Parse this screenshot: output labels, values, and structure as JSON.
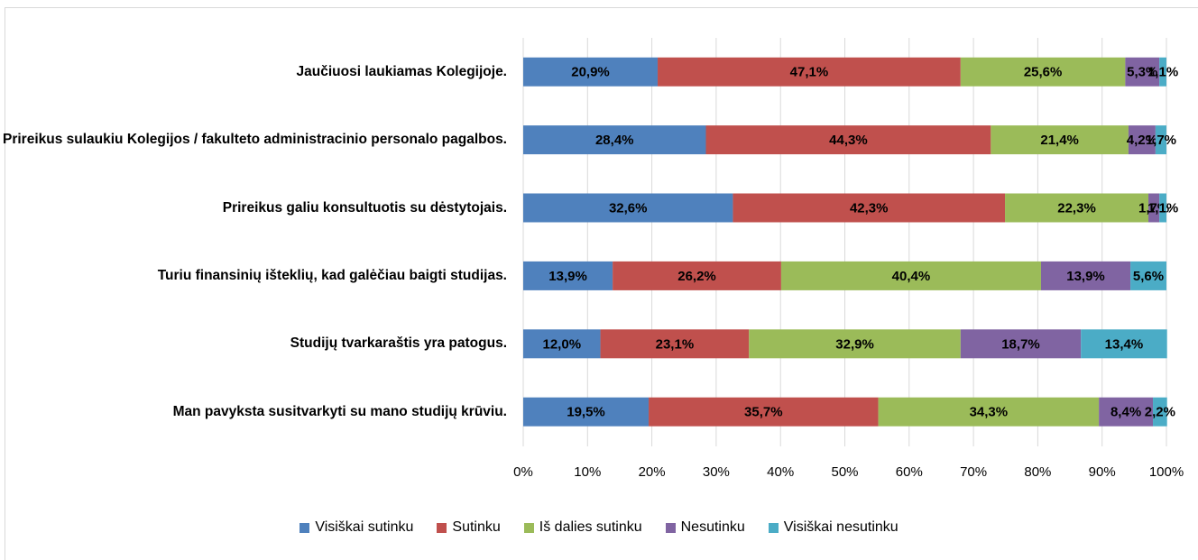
{
  "chart_data": {
    "type": "stacked_barh",
    "categories": [
      "Jaučiuosi laukiamas Kolegijoje.",
      "Prireikus sulaukiu Kolegijos / fakulteto administracinio personalo pagalbos.",
      "Prireikus galiu konsultuotis su dėstytojais.",
      "Turiu finansinių išteklių, kad galėčiau baigti studijas.",
      "Studijų tvarkaraštis yra patogus.",
      "Man pavyksta susitvarkyti su mano studijų krūviu."
    ],
    "series": [
      {
        "name": "Visiškai sutinku",
        "color": "#4f81bd",
        "values": [
          20.9,
          28.4,
          32.6,
          13.9,
          12.0,
          19.5
        ],
        "value_labels": [
          "20,9%",
          "28,4%",
          "32,6%",
          "13,9%",
          "12,0%",
          "19,5%"
        ]
      },
      {
        "name": "Sutinku",
        "color": "#c0504d",
        "values": [
          47.1,
          44.3,
          42.3,
          26.2,
          23.1,
          35.7
        ],
        "value_labels": [
          "47,1%",
          "44,3%",
          "42,3%",
          "26,2%",
          "23,1%",
          "35,7%"
        ]
      },
      {
        "name": "Iš dalies sutinku",
        "color": "#9bbb59",
        "values": [
          25.6,
          21.4,
          22.3,
          40.4,
          32.9,
          34.3
        ],
        "value_labels": [
          "25,6%",
          "21,4%",
          "22,3%",
          "40,4%",
          "32,9%",
          "34,3%"
        ]
      },
      {
        "name": "Nesutinku",
        "color": "#8064a2",
        "values": [
          5.3,
          4.2,
          1.7,
          13.9,
          18.7,
          8.4
        ],
        "value_labels": [
          "5,3%",
          "4,2%",
          "1,7%",
          "13,9%",
          "18,7%",
          "8,4%"
        ]
      },
      {
        "name": "Visiškai nesutinku",
        "color": "#4bacc6",
        "values": [
          1.1,
          1.7,
          1.1,
          5.6,
          13.4,
          2.2
        ],
        "value_labels": [
          "1,1%",
          "1,7%",
          "1,1%",
          "5,6%",
          "13,4%",
          "2,2%"
        ]
      }
    ],
    "xlim": [
      0,
      100
    ],
    "xticks": [
      {
        "value": 0,
        "label": "0%"
      },
      {
        "value": 10,
        "label": "10%"
      },
      {
        "value": 20,
        "label": "20%"
      },
      {
        "value": 30,
        "label": "30%"
      },
      {
        "value": 40,
        "label": "40%"
      },
      {
        "value": 50,
        "label": "50%"
      },
      {
        "value": 60,
        "label": "60%"
      },
      {
        "value": 70,
        "label": "70%"
      },
      {
        "value": 80,
        "label": "80%"
      },
      {
        "value": 90,
        "label": "90%"
      },
      {
        "value": 100,
        "label": "100%"
      }
    ],
    "grid": true,
    "legend": "bottom"
  }
}
